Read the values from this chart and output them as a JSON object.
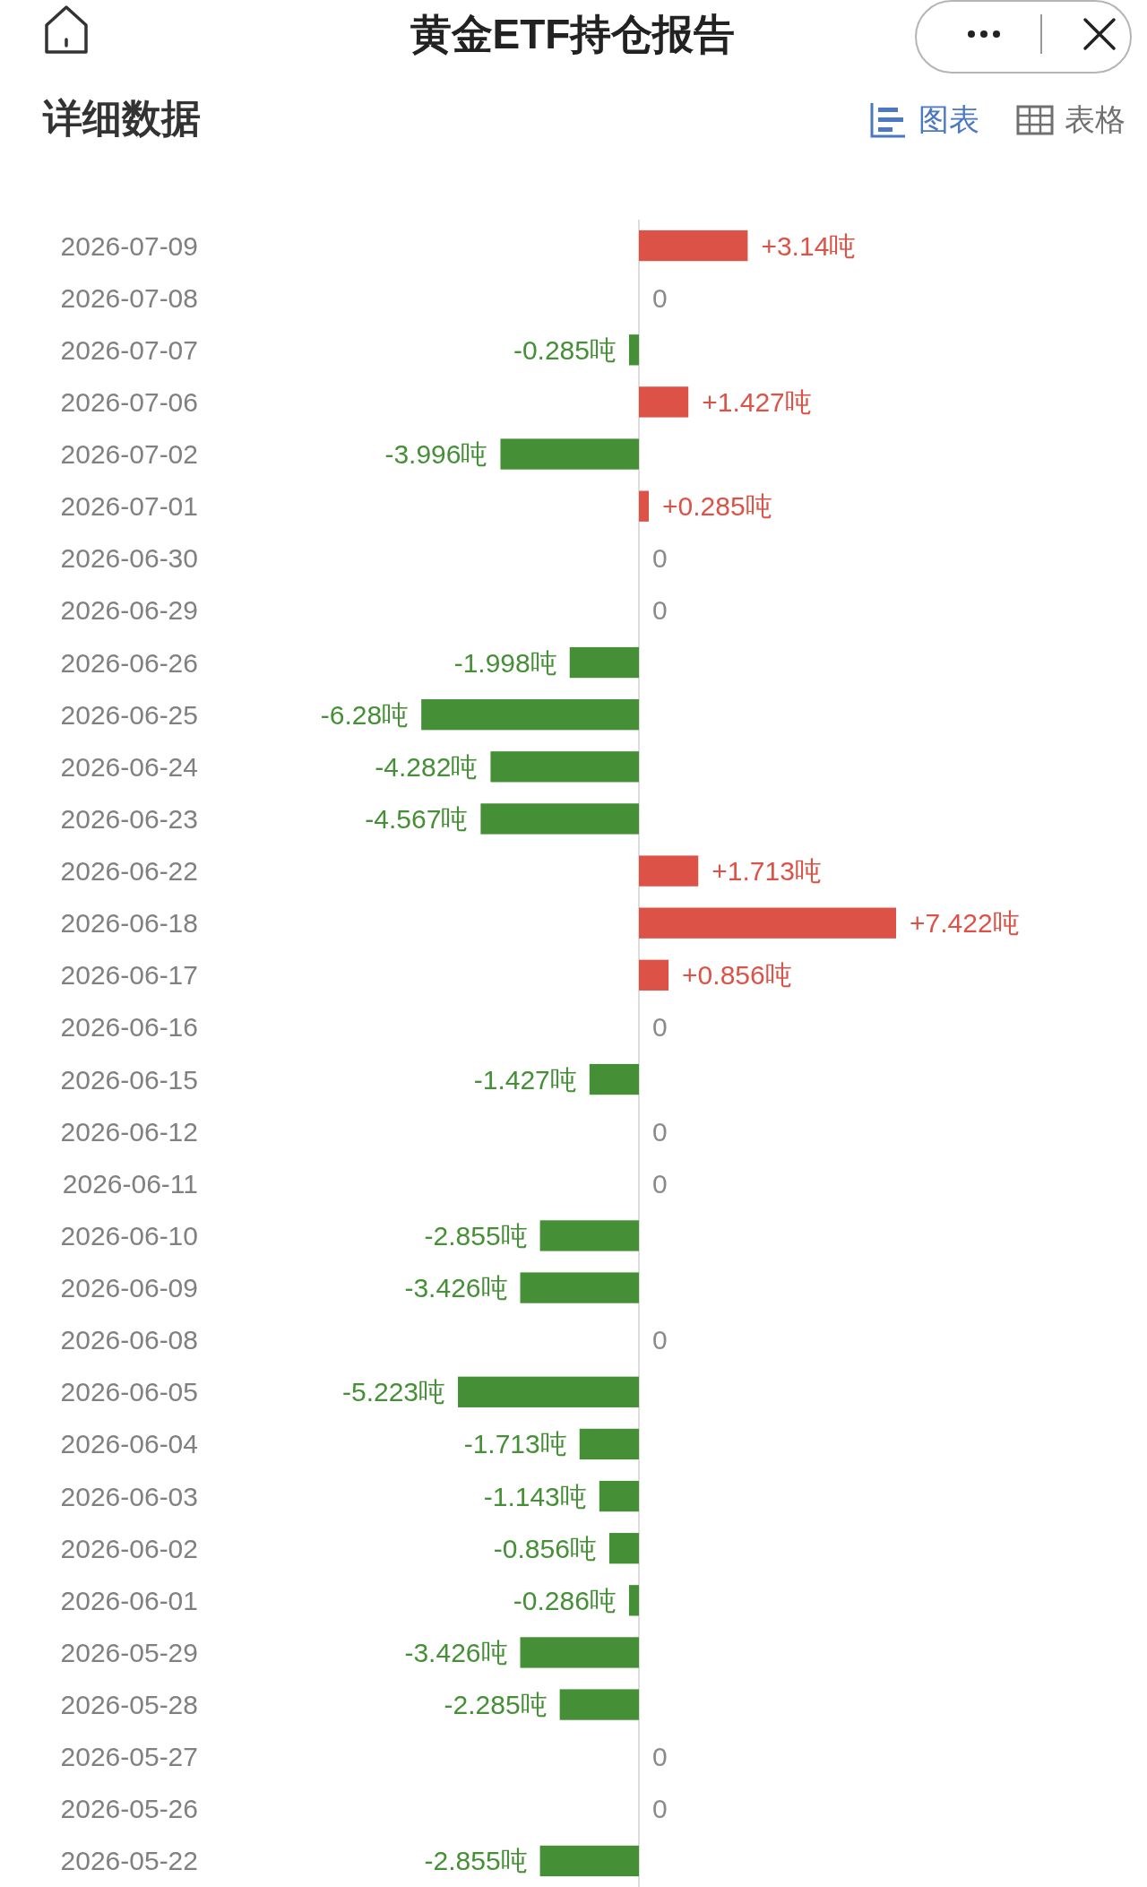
{
  "chart_data": {
    "type": "bar",
    "orientation": "horizontal",
    "title": "黄金ETF持仓报告",
    "subtitle": "详细数据",
    "annotations": [
      "图表",
      "表格"
    ],
    "tick_labels": "y",
    "categories": [
      "2026-07-09",
      "2026-07-08",
      "2026-07-07",
      "2026-07-06",
      "2026-07-02",
      "2026-07-01",
      "2026-06-30",
      "2026-06-29",
      "2026-06-26",
      "2026-06-25",
      "2026-06-24",
      "2026-06-23",
      "2026-06-22",
      "2026-06-18",
      "2026-06-17",
      "2026-06-16",
      "2026-06-15",
      "2026-06-12",
      "2026-06-11",
      "2026-06-10",
      "2026-06-09",
      "2026-06-08",
      "2026-06-05",
      "2026-06-04",
      "2026-06-03",
      "2026-06-02",
      "2026-06-01",
      "2026-05-29",
      "2026-05-28",
      "2026-05-27",
      "2026-05-26",
      "2026-05-22"
    ],
    "values": [
      3.14,
      0,
      -0.285,
      1.427,
      -3.996,
      0.285,
      0,
      0,
      -1.998,
      -6.28,
      -4.282,
      -4.567,
      1.713,
      7.422,
      0.856,
      0,
      -1.427,
      0,
      0,
      -2.855,
      -3.426,
      0,
      -5.223,
      -1.713,
      -1.143,
      -0.856,
      -0.286,
      -3.426,
      -2.285,
      0,
      0,
      -2.855
    ],
    "colors": [
      "#dd5246",
      "#8a8a8a",
      "#458f36",
      "#dd5246",
      "#458f36",
      "#dd5246",
      "#8a8a8a",
      "#8a8a8a",
      "#458f36",
      "#458f36",
      "#458f36",
      "#458f36",
      "#dd5246",
      "#dd5246",
      "#dd5246",
      "#8a8a8a",
      "#458f36",
      "#8a8a8a",
      "#8a8a8a",
      "#458f36",
      "#458f36",
      "#8a8a8a",
      "#458f36",
      "#458f36",
      "#458f36",
      "#458f36",
      "#458f36",
      "#458f36",
      "#458f36",
      "#8a8a8a",
      "#8a8a8a",
      "#458f36"
    ],
    "value_labels": [
      "+3.14吨",
      "0",
      "-0.285吨",
      "+1.427吨",
      "-3.996吨",
      "+0.285吨",
      "0",
      "0",
      "-1.998吨",
      "-6.28吨",
      "-4.282吨",
      "-4.567吨",
      "+1.713吨",
      "+7.422吨",
      "+0.856吨",
      "0",
      "-1.427吨",
      "0",
      "0",
      "-2.855吨",
      "-3.426吨",
      "0",
      "-5.223吨",
      "-1.713吨",
      "-1.143吨",
      "-0.856吨",
      "-0.286吨",
      "-3.426吨",
      "-2.285吨",
      "0",
      "0",
      "-2.855吨"
    ]
  }
}
